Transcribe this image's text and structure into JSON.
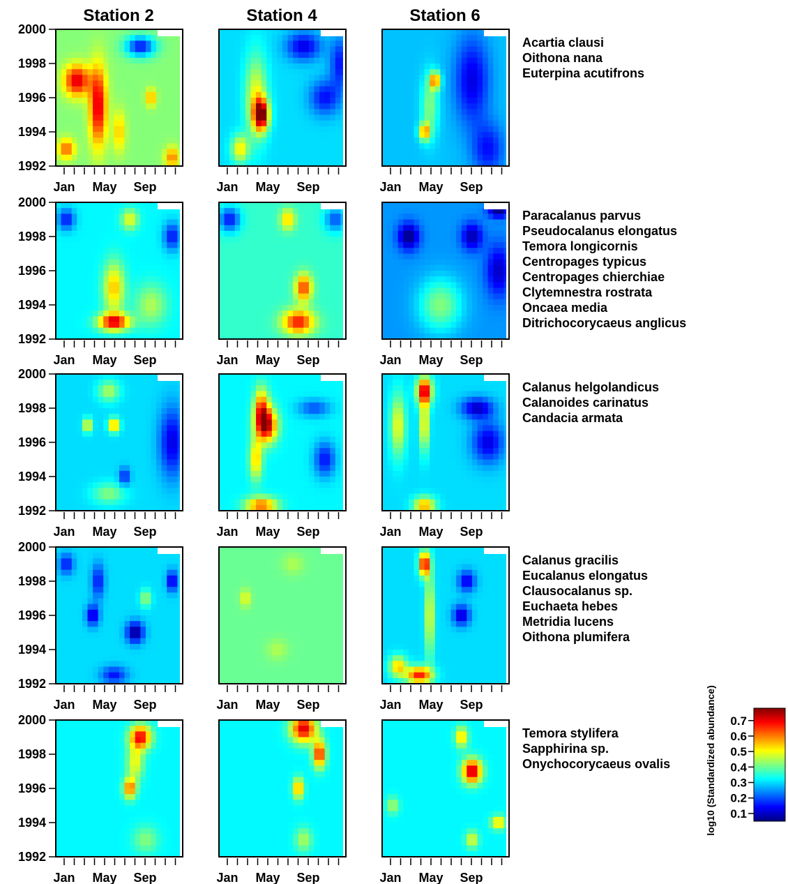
{
  "chart_data": {
    "type": "heatmap",
    "stations": [
      "Station 2",
      "Station 4",
      "Station 6"
    ],
    "y_ticks": [
      "2000",
      "1998",
      "1996",
      "1994",
      "1992"
    ],
    "ylim": [
      1992,
      2000
    ],
    "x_ticks": [
      "Jan",
      "May",
      "Sep"
    ],
    "x_months": 12,
    "colorbar": {
      "label": "log10 (Standardized abundance)",
      "ticks": [
        "0.7",
        "0.6",
        "0.5",
        "0.4",
        "0.3",
        "0.2",
        "0.1"
      ],
      "range": [
        0.05,
        0.78
      ],
      "colormap": [
        "#00007f",
        "#0000ff",
        "#007fff",
        "#00ffff",
        "#7fff7f",
        "#ffff00",
        "#ff7f00",
        "#ff0000",
        "#7f0000"
      ]
    },
    "groups": [
      {
        "species": [
          "Acartia clausi",
          "Oithona nana",
          "Euterpina acutifrons"
        ],
        "panels": [
          {
            "background": 0.42,
            "hotspots": [
              [
                2,
                1997,
                0.72,
                1.2,
                0.9
              ],
              [
                4,
                1995.5,
                0.72,
                0.8,
                2.3
              ],
              [
                1,
                1993,
                0.62,
                0.8,
                0.6
              ],
              [
                8,
                1999,
                0.15,
                1.4,
                0.6
              ],
              [
                9,
                1996,
                0.58,
                0.5,
                0.5
              ],
              [
                6,
                1994,
                0.55,
                0.6,
                1.2
              ],
              [
                11,
                1992.5,
                0.6,
                0.7,
                0.6
              ]
            ]
          },
          {
            "background": 0.3,
            "hotspots": [
              [
                4,
                1995,
                0.75,
                0.7,
                0.9
              ],
              [
                3.5,
                1996,
                0.5,
                1.0,
                2.4
              ],
              [
                8,
                1999,
                0.12,
                1.6,
                0.8
              ],
              [
                10,
                1996,
                0.15,
                1.4,
                1.0
              ],
              [
                2,
                1993,
                0.52,
                0.8,
                0.8
              ],
              [
                11.5,
                1998,
                0.15,
                1.0,
                1.5
              ]
            ]
          },
          {
            "background": 0.28,
            "hotspots": [
              [
                5,
                1997,
                0.6,
                0.5,
                0.5
              ],
              [
                4,
                1994,
                0.58,
                0.5,
                0.5
              ],
              [
                8.5,
                1997,
                0.12,
                1.6,
                2.5
              ],
              [
                10,
                1993,
                0.15,
                1.5,
                1.5
              ],
              [
                4.5,
                1995.5,
                0.42,
                0.8,
                1.8
              ]
            ]
          }
        ]
      },
      {
        "species": [
          "Paracalanus parvus",
          "Pseudocalanus elongatus",
          "Temora longicornis",
          "Centropages typicus",
          "Centropages chierchiae",
          "Clytemnestra rostrata",
          "Oncaea media",
          "Ditrichocorycaeus anglicus"
        ],
        "panels": [
          {
            "background": 0.32,
            "hotspots": [
              [
                5.5,
                1993,
                0.7,
                1.5,
                0.5
              ],
              [
                5.5,
                1995,
                0.55,
                1.0,
                1.5
              ],
              [
                7,
                1999,
                0.5,
                0.8,
                0.6
              ],
              [
                11,
                1998,
                0.15,
                0.8,
                0.8
              ],
              [
                1,
                1999,
                0.15,
                0.8,
                0.6
              ],
              [
                9,
                1994,
                0.45,
                1.5,
                1.2
              ]
            ]
          },
          {
            "background": 0.36,
            "hotspots": [
              [
                7.5,
                1993,
                0.68,
                1.5,
                0.7
              ],
              [
                8,
                1995,
                0.65,
                0.8,
                0.8
              ],
              [
                6.5,
                1999,
                0.55,
                0.7,
                0.6
              ],
              [
                1,
                1999,
                0.15,
                1.0,
                0.7
              ],
              [
                11,
                1999,
                0.2,
                1.0,
                0.7
              ]
            ]
          },
          {
            "background": 0.25,
            "hotspots": [
              [
                2.5,
                1998,
                0.05,
                1.0,
                0.8
              ],
              [
                8.5,
                1998,
                0.08,
                1.0,
                0.8
              ],
              [
                5.5,
                1994,
                0.42,
                2.0,
                1.5
              ],
              [
                11,
                1996,
                0.1,
                1.2,
                1.5
              ],
              [
                11,
                1999.5,
                0.05,
                1.0,
                0.4
              ]
            ]
          }
        ]
      },
      {
        "species": [
          "Calanus helgolandicus",
          "Calanoides carinatus",
          "Candacia armata"
        ],
        "panels": [
          {
            "background": 0.3,
            "hotspots": [
              [
                5.5,
                1997,
                0.62,
                0.5,
                0.4
              ],
              [
                3,
                1997,
                0.55,
                0.4,
                0.4
              ],
              [
                11,
                1996,
                0.12,
                1.2,
                2.0
              ],
              [
                6.5,
                1994,
                0.15,
                0.5,
                0.5
              ],
              [
                5,
                1999,
                0.45,
                1.0,
                0.6
              ],
              [
                5,
                1993,
                0.42,
                1.5,
                0.6
              ]
            ]
          },
          {
            "background": 0.32,
            "hotspots": [
              [
                4.5,
                1997,
                0.72,
                1.0,
                1.0
              ],
              [
                4,
                1998,
                0.6,
                0.7,
                1.2
              ],
              [
                3.5,
                1995,
                0.55,
                0.6,
                1.2
              ],
              [
                4,
                1992.3,
                0.62,
                1.5,
                0.5
              ],
              [
                10,
                1995,
                0.15,
                1.0,
                1.0
              ],
              [
                9,
                1998,
                0.2,
                1.5,
                0.5
              ]
            ]
          },
          {
            "background": 0.3,
            "hotspots": [
              [
                4,
                1999,
                0.72,
                0.7,
                0.8
              ],
              [
                4,
                1997,
                0.55,
                0.4,
                1.5
              ],
              [
                9,
                1998,
                0.1,
                1.5,
                0.6
              ],
              [
                10,
                1996,
                0.12,
                1.5,
                1.2
              ],
              [
                4,
                1992.3,
                0.58,
                1.0,
                0.5
              ],
              [
                1.5,
                1997,
                0.5,
                0.7,
                1.8
              ]
            ]
          }
        ]
      },
      {
        "species": [
          "Calanus gracilis",
          "Eucalanus elongatus",
          "Clausocalanus sp.",
          "Euchaeta hebes",
          "Metridia lucens",
          "Oithona plumifera"
        ],
        "panels": [
          {
            "background": 0.3,
            "hotspots": [
              [
                7.5,
                1995,
                0.05,
                0.8,
                0.6
              ],
              [
                3.5,
                1996,
                0.1,
                0.6,
                0.6
              ],
              [
                11,
                1998,
                0.1,
                0.5,
                0.6
              ],
              [
                1,
                1999,
                0.15,
                0.7,
                0.6
              ],
              [
                4,
                1998,
                0.15,
                0.6,
                1.0
              ],
              [
                5.5,
                1992.5,
                0.15,
                1.2,
                0.5
              ],
              [
                8.5,
                1997,
                0.45,
                0.5,
                0.5
              ]
            ]
          },
          {
            "background": 0.4,
            "hotspots": [
              [
                2.5,
                1997,
                0.5,
                0.5,
                0.5
              ],
              [
                5.5,
                1994,
                0.45,
                1.0,
                0.6
              ],
              [
                7,
                1999,
                0.45,
                1.0,
                0.6
              ]
            ]
          },
          {
            "background": 0.3,
            "hotspots": [
              [
                4,
                1999,
                0.72,
                0.5,
                0.7
              ],
              [
                4.5,
                1996,
                0.52,
                0.4,
                2.5
              ],
              [
                3.5,
                1992.5,
                0.68,
                1.2,
                0.5
              ],
              [
                8,
                1998,
                0.12,
                0.8,
                0.6
              ],
              [
                7.5,
                1996,
                0.1,
                0.8,
                0.6
              ],
              [
                1.5,
                1993,
                0.55,
                0.8,
                0.6
              ]
            ]
          }
        ]
      },
      {
        "species": [
          "Temora stylifera",
          "Sapphirina sp.",
          "Onychocorycaeus ovalis"
        ],
        "panels": [
          {
            "background": 0.32,
            "hotspots": [
              [
                8,
                1999,
                0.7,
                1.0,
                0.7
              ],
              [
                7,
                1996,
                0.62,
                0.6,
                0.6
              ],
              [
                7.5,
                1997.5,
                0.5,
                0.8,
                1.0
              ],
              [
                8.5,
                1993,
                0.42,
                1.2,
                0.8
              ]
            ]
          },
          {
            "background": 0.32,
            "hotspots": [
              [
                8,
                1999.5,
                0.72,
                1.2,
                0.8
              ],
              [
                9.5,
                1998,
                0.68,
                0.6,
                0.8
              ],
              [
                7.5,
                1996,
                0.6,
                0.5,
                0.6
              ],
              [
                8,
                1993,
                0.45,
                0.8,
                0.7
              ]
            ]
          },
          {
            "background": 0.32,
            "hotspots": [
              [
                8.5,
                1997,
                0.75,
                0.9,
                0.7
              ],
              [
                7.5,
                1999,
                0.55,
                0.6,
                0.6
              ],
              [
                11,
                1994,
                0.55,
                0.7,
                0.4
              ],
              [
                8.5,
                1993,
                0.5,
                0.6,
                0.5
              ],
              [
                1,
                1995,
                0.45,
                0.6,
                0.5
              ]
            ]
          }
        ]
      }
    ]
  }
}
